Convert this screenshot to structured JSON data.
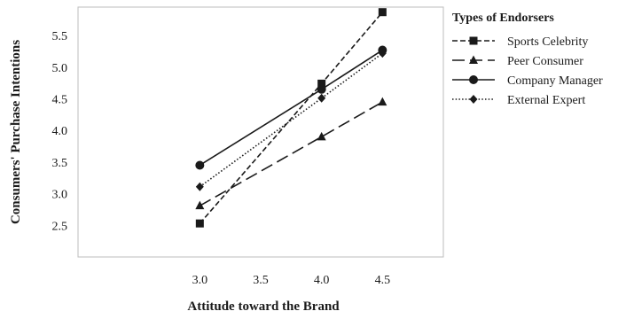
{
  "chart_data": {
    "type": "line",
    "xlabel": "Attitude toward the Brand",
    "ylabel": "Consumers' Purchase Intentions",
    "x": [
      3.0,
      4.0,
      4.5
    ],
    "x_ticks": [
      "3.0",
      "3.5",
      "4.0",
      "4.5"
    ],
    "y_ticks": [
      "2.5",
      "3.0",
      "3.5",
      "4.0",
      "4.5",
      "5.0",
      "5.5"
    ],
    "xlim": [
      2.0,
      5.0
    ],
    "ylim": [
      2.0,
      5.95
    ],
    "grid": false,
    "legend": {
      "title": "Types of Endorsers",
      "placement": "right"
    },
    "series": [
      {
        "name": "Sports Celebrity",
        "values": [
          2.53,
          4.74,
          5.87
        ],
        "marker": "square",
        "dash": "short-dash",
        "color": "#1a1a1a"
      },
      {
        "name": "Peer Consumer",
        "values": [
          2.81,
          3.9,
          4.45
        ],
        "marker": "triangle",
        "dash": "long-dash",
        "color": "#1a1a1a"
      },
      {
        "name": "Company Manager",
        "values": [
          3.45,
          4.65,
          5.27
        ],
        "marker": "circle",
        "dash": "solid",
        "color": "#1a1a1a"
      },
      {
        "name": "External Expert",
        "values": [
          3.11,
          4.51,
          5.22
        ],
        "marker": "diamond",
        "dash": "dotted",
        "color": "#1a1a1a"
      }
    ]
  }
}
